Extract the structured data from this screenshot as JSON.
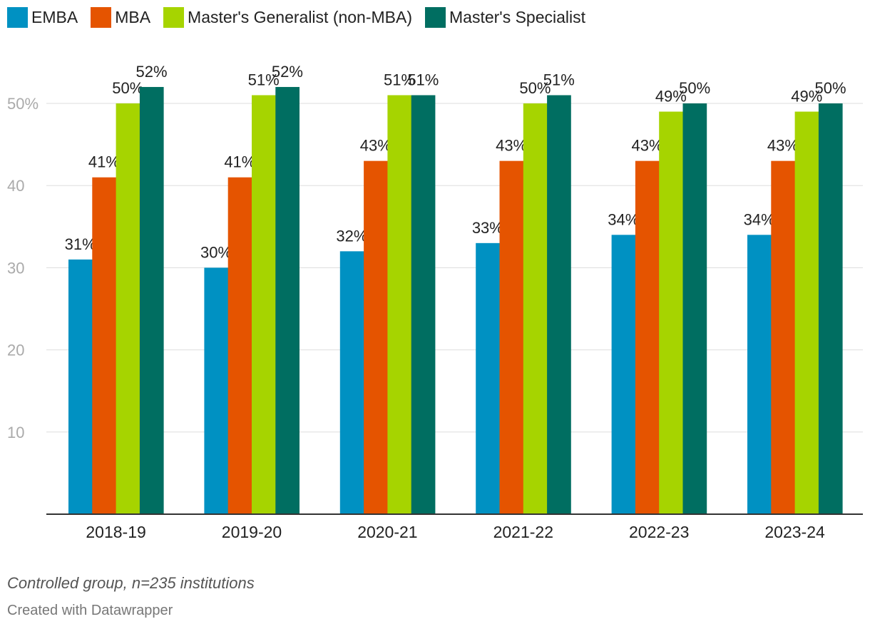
{
  "chart_data": {
    "type": "bar",
    "categories": [
      "2018-19",
      "2019-20",
      "2020-21",
      "2021-22",
      "2022-23",
      "2023-24"
    ],
    "series": [
      {
        "name": "EMBA",
        "color": "#0091c2",
        "values": [
          31,
          30,
          32,
          33,
          34,
          34
        ]
      },
      {
        "name": "MBA",
        "color": "#e55400",
        "values": [
          41,
          41,
          43,
          43,
          43,
          43
        ]
      },
      {
        "name": "Master's Generalist (non-MBA)",
        "color": "#a6d400",
        "values": [
          50,
          51,
          51,
          50,
          49,
          49
        ]
      },
      {
        "name": "Master's Specialist",
        "color": "#006e61",
        "values": [
          52,
          52,
          51,
          51,
          50,
          50
        ]
      }
    ],
    "yticks": [
      {
        "value": 10,
        "label": "10"
      },
      {
        "value": 20,
        "label": "20"
      },
      {
        "value": 30,
        "label": "30"
      },
      {
        "value": 40,
        "label": "40"
      },
      {
        "value": 50,
        "label": "50%"
      }
    ],
    "ylim": [
      0,
      55
    ],
    "value_suffix": "%",
    "grid": true,
    "legend_position": "top-left"
  },
  "notes": "Controlled group, n=235 institutions",
  "credit": "Created with Datawrapper"
}
